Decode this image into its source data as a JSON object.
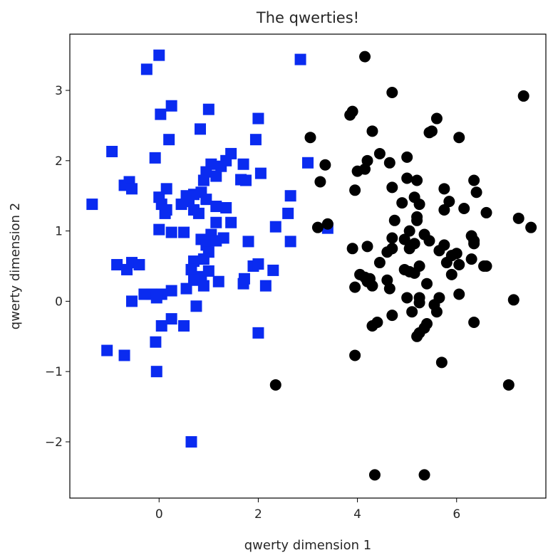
{
  "chart_data": {
    "type": "scatter",
    "title": "The qwerties!",
    "xlabel": "qwerty dimension 1",
    "ylabel": "qwerty dimension 2",
    "xlim": [
      -1.8,
      7.8
    ],
    "ylim": [
      -2.8,
      3.8
    ],
    "xticks": [
      0,
      2,
      4,
      6
    ],
    "yticks": [
      -2,
      -1,
      0,
      1,
      2,
      3
    ],
    "xtick_labels": [
      "0",
      "2",
      "4",
      "6"
    ],
    "ytick_labels": [
      "−2",
      "−1",
      "0",
      "1",
      "2",
      "3"
    ],
    "grid": false,
    "series": [
      {
        "marker": "square",
        "color": "#0a2bf0",
        "points": [
          [
            0.0,
            3.5
          ],
          [
            -0.25,
            3.3
          ],
          [
            2.85,
            3.44
          ],
          [
            1.0,
            2.73
          ],
          [
            0.25,
            2.78
          ],
          [
            0.03,
            2.66
          ],
          [
            0.83,
            2.45
          ],
          [
            2.0,
            2.6
          ],
          [
            1.95,
            2.3
          ],
          [
            0.2,
            2.3
          ],
          [
            -0.95,
            2.13
          ],
          [
            -0.08,
            2.04
          ],
          [
            1.45,
            2.1
          ],
          [
            1.35,
            2.0
          ],
          [
            1.25,
            1.92
          ],
          [
            1.05,
            1.95
          ],
          [
            1.7,
            1.95
          ],
          [
            2.05,
            1.82
          ],
          [
            3.0,
            1.97
          ],
          [
            1.65,
            1.73
          ],
          [
            1.75,
            1.72
          ],
          [
            0.95,
            1.84
          ],
          [
            1.15,
            1.78
          ],
          [
            0.9,
            1.72
          ],
          [
            -0.6,
            1.7
          ],
          [
            -0.7,
            1.65
          ],
          [
            -0.55,
            1.6
          ],
          [
            0.15,
            1.6
          ],
          [
            0.0,
            1.48
          ],
          [
            0.05,
            1.38
          ],
          [
            0.55,
            1.5
          ],
          [
            0.7,
            1.52
          ],
          [
            0.85,
            1.55
          ],
          [
            0.95,
            1.45
          ],
          [
            0.6,
            1.42
          ],
          [
            0.45,
            1.38
          ],
          [
            0.7,
            1.3
          ],
          [
            0.8,
            1.25
          ],
          [
            0.15,
            1.3
          ],
          [
            0.12,
            1.25
          ],
          [
            1.15,
            1.35
          ],
          [
            1.35,
            1.33
          ],
          [
            -1.35,
            1.38
          ],
          [
            2.65,
            1.5
          ],
          [
            2.6,
            1.25
          ],
          [
            1.45,
            1.12
          ],
          [
            1.15,
            1.12
          ],
          [
            2.35,
            1.06
          ],
          [
            3.4,
            1.04
          ],
          [
            0.0,
            1.02
          ],
          [
            0.25,
            0.98
          ],
          [
            0.5,
            0.98
          ],
          [
            1.05,
            0.95
          ],
          [
            1.3,
            0.9
          ],
          [
            0.85,
            0.88
          ],
          [
            0.95,
            0.8
          ],
          [
            1.15,
            0.86
          ],
          [
            1.8,
            0.85
          ],
          [
            2.65,
            0.85
          ],
          [
            1.0,
            0.7
          ],
          [
            0.7,
            0.57
          ],
          [
            0.9,
            0.6
          ],
          [
            1.9,
            0.5
          ],
          [
            2.0,
            0.53
          ],
          [
            0.65,
            0.45
          ],
          [
            1.0,
            0.43
          ],
          [
            2.3,
            0.44
          ],
          [
            -0.65,
            0.45
          ],
          [
            -0.55,
            0.55
          ],
          [
            -0.4,
            0.52
          ],
          [
            -0.85,
            0.52
          ],
          [
            0.85,
            0.35
          ],
          [
            0.7,
            0.3
          ],
          [
            1.2,
            0.28
          ],
          [
            0.9,
            0.22
          ],
          [
            1.7,
            0.25
          ],
          [
            1.72,
            0.32
          ],
          [
            2.15,
            0.22
          ],
          [
            0.55,
            0.18
          ],
          [
            0.25,
            0.15
          ],
          [
            0.05,
            0.1
          ],
          [
            -0.15,
            0.1
          ],
          [
            -0.3,
            0.1
          ],
          [
            -0.05,
            0.05
          ],
          [
            -0.55,
            0.0
          ],
          [
            0.75,
            -0.07
          ],
          [
            0.25,
            -0.25
          ],
          [
            0.05,
            -0.35
          ],
          [
            0.5,
            -0.35
          ],
          [
            2.0,
            -0.45
          ],
          [
            -0.07,
            -0.58
          ],
          [
            -1.05,
            -0.7
          ],
          [
            -0.7,
            -0.77
          ],
          [
            -0.05,
            -1.0
          ],
          [
            0.65,
            -2.0
          ]
        ]
      },
      {
        "marker": "circle",
        "color": "#000000",
        "points": [
          [
            4.15,
            3.48
          ],
          [
            4.7,
            2.97
          ],
          [
            7.35,
            2.92
          ],
          [
            3.9,
            2.7
          ],
          [
            3.85,
            2.65
          ],
          [
            5.6,
            2.6
          ],
          [
            5.5,
            2.42
          ],
          [
            5.45,
            2.4
          ],
          [
            4.3,
            2.42
          ],
          [
            3.05,
            2.33
          ],
          [
            6.05,
            2.33
          ],
          [
            4.45,
            2.1
          ],
          [
            4.2,
            2.0
          ],
          [
            5.0,
            2.05
          ],
          [
            3.35,
            1.94
          ],
          [
            4.65,
            1.97
          ],
          [
            4.15,
            1.88
          ],
          [
            4.0,
            1.85
          ],
          [
            5.0,
            1.75
          ],
          [
            5.2,
            1.72
          ],
          [
            6.35,
            1.72
          ],
          [
            3.25,
            1.7
          ],
          [
            4.7,
            1.62
          ],
          [
            5.75,
            1.6
          ],
          [
            3.95,
            1.58
          ],
          [
            6.4,
            1.55
          ],
          [
            5.15,
            1.48
          ],
          [
            5.25,
            1.38
          ],
          [
            5.85,
            1.42
          ],
          [
            4.9,
            1.4
          ],
          [
            6.15,
            1.32
          ],
          [
            5.75,
            1.3
          ],
          [
            6.6,
            1.26
          ],
          [
            5.2,
            1.2
          ],
          [
            5.2,
            1.15
          ],
          [
            4.75,
            1.15
          ],
          [
            7.25,
            1.18
          ],
          [
            7.5,
            1.05
          ],
          [
            3.4,
            1.1
          ],
          [
            3.2,
            1.05
          ],
          [
            5.05,
            1.0
          ],
          [
            5.35,
            0.95
          ],
          [
            6.3,
            0.93
          ],
          [
            4.7,
            0.9
          ],
          [
            4.95,
            0.88
          ],
          [
            5.45,
            0.86
          ],
          [
            6.35,
            0.86
          ],
          [
            5.15,
            0.82
          ],
          [
            5.75,
            0.8
          ],
          [
            6.35,
            0.82
          ],
          [
            4.7,
            0.75
          ],
          [
            4.6,
            0.7
          ],
          [
            3.9,
            0.75
          ],
          [
            4.2,
            0.78
          ],
          [
            5.05,
            0.75
          ],
          [
            5.65,
            0.72
          ],
          [
            6.0,
            0.68
          ],
          [
            5.9,
            0.65
          ],
          [
            4.45,
            0.55
          ],
          [
            5.8,
            0.55
          ],
          [
            6.05,
            0.52
          ],
          [
            6.55,
            0.5
          ],
          [
            6.6,
            0.5
          ],
          [
            5.25,
            0.5
          ],
          [
            6.3,
            0.6
          ],
          [
            5.9,
            0.38
          ],
          [
            4.05,
            0.38
          ],
          [
            4.15,
            0.34
          ],
          [
            4.25,
            0.32
          ],
          [
            4.2,
            0.28
          ],
          [
            4.6,
            0.3
          ],
          [
            5.05,
            0.42
          ],
          [
            4.95,
            0.45
          ],
          [
            5.15,
            0.4
          ],
          [
            3.95,
            0.2
          ],
          [
            4.3,
            0.22
          ],
          [
            4.65,
            0.18
          ],
          [
            5.4,
            0.25
          ],
          [
            5.0,
            0.05
          ],
          [
            5.25,
            0.05
          ],
          [
            5.65,
            0.05
          ],
          [
            6.05,
            0.1
          ],
          [
            7.15,
            0.02
          ],
          [
            5.25,
            -0.02
          ],
          [
            5.55,
            -0.05
          ],
          [
            5.1,
            -0.15
          ],
          [
            5.6,
            -0.15
          ],
          [
            4.7,
            -0.2
          ],
          [
            4.4,
            -0.3
          ],
          [
            4.3,
            -0.35
          ],
          [
            5.4,
            -0.32
          ],
          [
            5.35,
            -0.38
          ],
          [
            5.25,
            -0.45
          ],
          [
            5.2,
            -0.5
          ],
          [
            6.35,
            -0.3
          ],
          [
            3.95,
            -0.77
          ],
          [
            5.7,
            -0.87
          ],
          [
            2.35,
            -1.19
          ],
          [
            7.05,
            -1.19
          ],
          [
            4.35,
            -2.47
          ],
          [
            5.35,
            -2.47
          ]
        ]
      }
    ]
  }
}
